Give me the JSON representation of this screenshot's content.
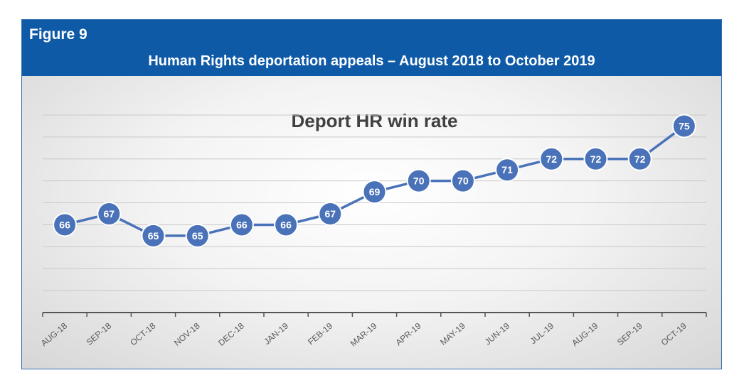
{
  "figure": {
    "label": "Figure 9",
    "title": "Human Rights deportation appeals – August 2018 to October 2019"
  },
  "colors": {
    "header_bg": "#0e5aa7",
    "series": "#4a72b8",
    "marker_border": "#ffffff",
    "title_text": "#404040",
    "tick_text": "#595959"
  },
  "chart_data": {
    "type": "line",
    "title": "Deport HR win rate",
    "xlabel": "",
    "ylabel": "",
    "grid": true,
    "legend": "none",
    "ylim": [
      58,
      76
    ],
    "categories": [
      "AUG-18",
      "SEP-18",
      "OCT-18",
      "NOV-18",
      "DEC-18",
      "JAN-19",
      "FEB-19",
      "MAR-19",
      "APR-19",
      "MAY-19",
      "JUN-19",
      "JUL-19",
      "AUG-19",
      "SEP-19",
      "OCT-19"
    ],
    "series": [
      {
        "values": [
          66,
          67,
          65,
          65,
          66,
          66,
          67,
          69,
          70,
          70,
          71,
          72,
          72,
          72,
          75
        ]
      }
    ],
    "data_labels": true
  }
}
